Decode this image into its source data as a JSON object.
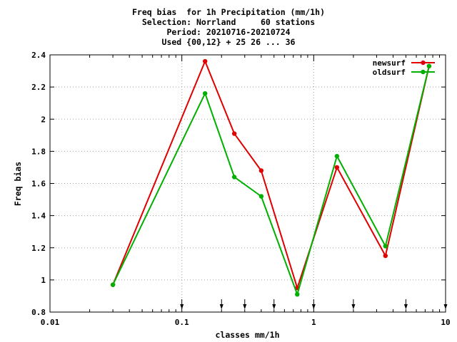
{
  "title": {
    "line1": "Freq bias  for 1h Precipitation (mm/1h)",
    "line2": "Selection: Norrland     60 stations",
    "line3": "Period: 20210716-20210724",
    "line4": "Used {00,12} + 25 26 ... 36"
  },
  "chart_data": {
    "type": "line",
    "title": "Freq bias  for 1h Precipitation (mm/1h)",
    "xlabel": "classes mm/1h",
    "ylabel": "Freq bias",
    "xscale": "log",
    "xlim": [
      0.01,
      10
    ],
    "ylim": [
      0.8,
      2.4
    ],
    "grid": true,
    "legend_position": "top-right",
    "x_ticks": [
      0.01,
      0.1,
      1,
      10
    ],
    "x_tick_labels": [
      "0.01",
      "0.1",
      "1",
      "10"
    ],
    "y_ticks": [
      0.8,
      1,
      1.2,
      1.4,
      1.6,
      1.8,
      2,
      2.2,
      2.4
    ],
    "y_tick_labels": [
      "0.8",
      "1",
      "1.2",
      "1.4",
      "1.6",
      "1.8",
      "2",
      "2.2",
      "2.4"
    ],
    "class_markers": [
      0.1,
      0.2,
      0.3,
      0.5,
      1,
      2,
      5,
      10
    ],
    "series": [
      {
        "name": "newsurf",
        "color": "#e00000",
        "x": [
          0.03,
          0.15,
          0.25,
          0.4,
          0.75,
          1.5,
          3.5,
          7.5
        ],
        "values": [
          0.97,
          2.36,
          1.91,
          1.68,
          0.95,
          1.7,
          1.15,
          2.33
        ]
      },
      {
        "name": "oldsurf",
        "color": "#00b000",
        "x": [
          0.03,
          0.15,
          0.25,
          0.4,
          0.75,
          1.5,
          3.5,
          7.5
        ],
        "values": [
          0.97,
          2.16,
          1.64,
          1.52,
          0.91,
          1.77,
          1.21,
          2.33
        ]
      }
    ]
  }
}
